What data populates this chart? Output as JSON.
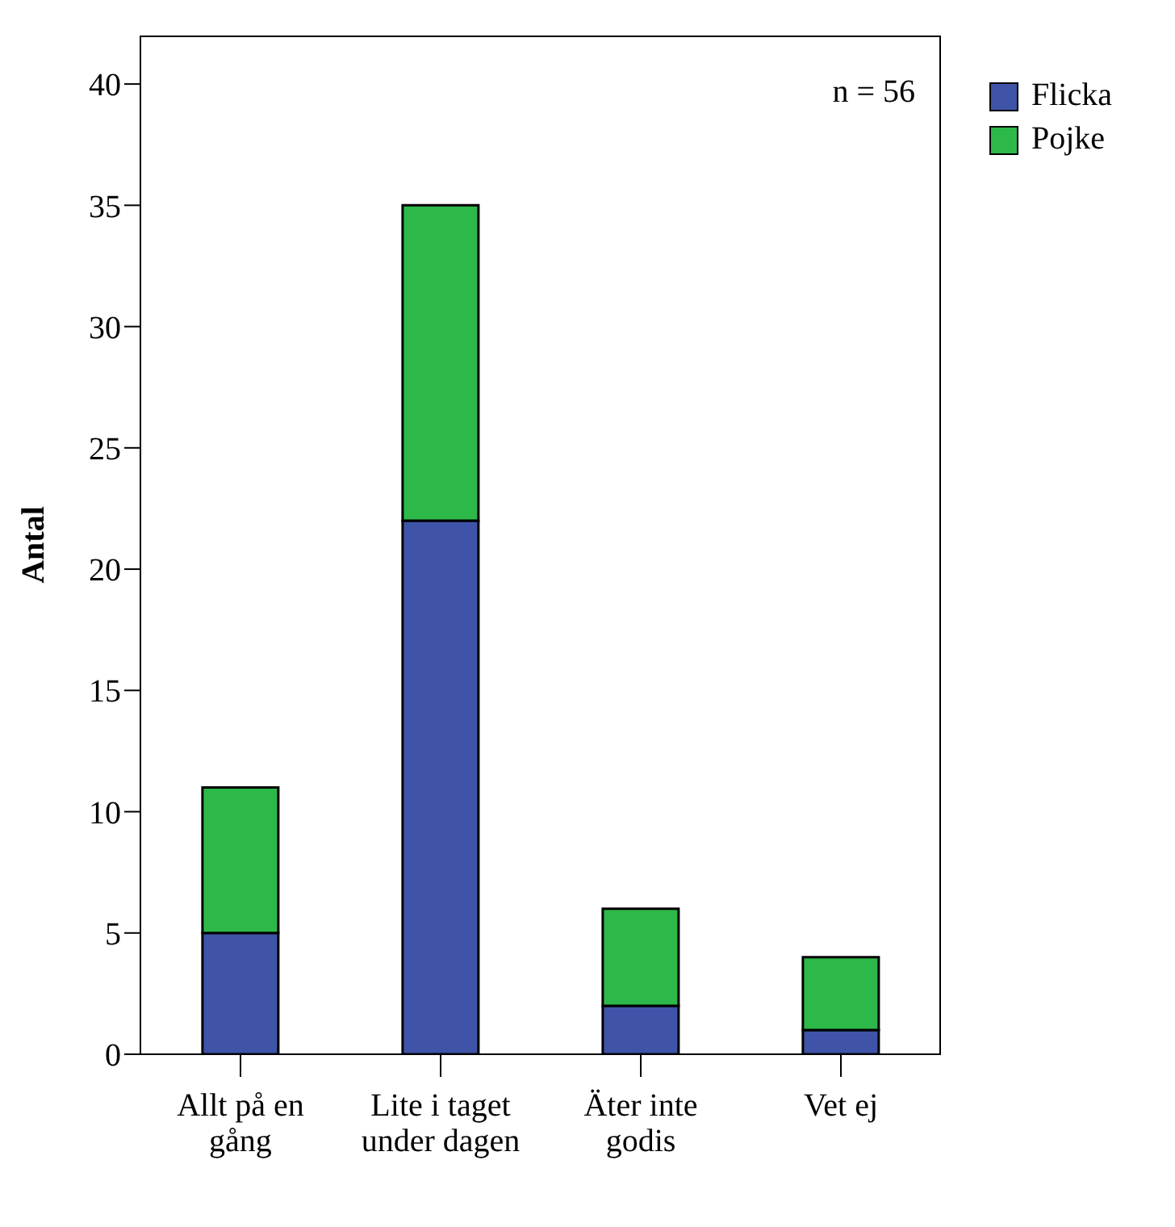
{
  "chart_data": {
    "type": "bar",
    "stacked": true,
    "ylabel": "Antal",
    "categories": [
      "Allt på en gång",
      "Lite i taget under dagen",
      "Äter inte godis",
      "Vet ej"
    ],
    "series": [
      {
        "name": "Flicka",
        "color": "#3f54a8",
        "values": [
          5,
          22,
          2,
          1
        ]
      },
      {
        "name": "Pojke",
        "color": "#2db84a",
        "values": [
          6,
          13,
          4,
          3
        ]
      }
    ],
    "ylim": [
      0,
      42
    ],
    "yticks": [
      0,
      5,
      10,
      15,
      20,
      25,
      30,
      35,
      40
    ],
    "legend": "top right",
    "annotations": [
      "n = 56"
    ]
  }
}
